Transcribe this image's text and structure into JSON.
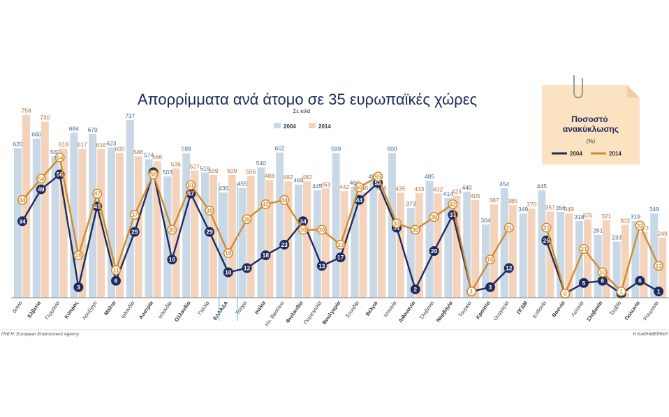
{
  "chart_data": {
    "type": "bar",
    "title": "Απορρίμματα ανά άτομο σε 35 ευρωπαϊκές χώρες",
    "subtitle": "Σε κιλά",
    "categories": [
      "Δανία",
      "Ελβετία",
      "Γερμανία",
      "Κύπρος",
      "Λουξ/ργο",
      "Μάλτα",
      "Ιρλανδία",
      "Αυστρία",
      "Ισλανδία",
      "Ολλανδία",
      "Γαλλία",
      "ΕΛΛΑΔΑ",
      "Τσεχία",
      "Ιταλία",
      "Ην. Βασίλειο",
      "Φινλανδία",
      "Πορτογαλία",
      "Βουλγαρία",
      "Σουηδία",
      "Βέλγιο",
      "Ισπανία",
      "Λιθουανία",
      "Σλοβενία",
      "Νορβηγία",
      "Τουρκία",
      "Κροατία",
      "Ουγγαρία",
      "ΠΓΔΜ",
      "Εσθονία",
      "Βοσνία",
      "Λετονία",
      "Σλοβακία",
      "Σερβία",
      "Πολωνία",
      "Ρουμανία"
    ],
    "bold_categories": [
      "Ελβετία",
      "Κύπρος",
      "Μάλτα",
      "Αυστρία",
      "Ολλανδία",
      "Ιταλία",
      "Φινλανδία",
      "Βουλγαρία",
      "Βέλγιο",
      "Λιθουανία",
      "Νορβηγία",
      "Κροατία",
      "ΠΓΔΜ",
      "Βοσνία",
      "Σλοβακία",
      "Πολωνία"
    ],
    "highlight_category": "ΕΛΛΑΔΑ",
    "series": [
      {
        "name": "2004",
        "color": "#c9d8e6",
        "values": [
          620,
          660,
          587,
          684,
          679,
          623,
          737,
          574,
          503,
          599,
          519,
          436,
          455,
          540,
          602,
          469,
          445,
          599,
          460,
          485,
          600,
          373,
          485,
          414,
          440,
          304,
          454,
          349,
          445,
          356,
          318,
          261,
          233,
          319,
          349
        ]
      },
      {
        "name": "2014",
        "color": "#f4d3bd",
        "values": [
          758,
          730,
          618,
          617,
          616,
          600,
          586,
          566,
          536,
          527,
          509,
          509,
          506,
          488,
          482,
          482,
          453,
          442,
          438,
          436,
          435,
          433,
          432,
          423,
          405,
          387,
          385,
          370,
          357,
          349,
          325,
          321,
          302,
          272,
          249
        ]
      }
    ],
    "recycling": {
      "title": "Ποσοστό ανακύκλωσης",
      "unit": "(%)",
      "series": [
        {
          "name": "2004",
          "color": "#1f2a5c",
          "values": [
            34,
            49,
            56,
            3,
            41,
            6,
            29,
            57,
            16,
            47,
            29,
            10,
            12,
            18,
            23,
            34,
            13,
            17,
            44,
            52,
            31,
            2,
            20,
            37,
            1,
            3,
            12,
            null,
            25,
            0,
            5,
            6,
            0,
            6,
            1
          ]
        },
        {
          "name": "2014",
          "color": "#d08b2a",
          "values": [
            44,
            54,
            64,
            18,
            47,
            11,
            37,
            56,
            30,
            51,
            39,
            19,
            35,
            42,
            44,
            30,
            30,
            23,
            50,
            55,
            33,
            30,
            36,
            42,
            1,
            16,
            31,
            null,
            31,
            0,
            21,
            10,
            1,
            32,
            13
          ]
        }
      ]
    },
    "ylim": [
      0,
      800
    ],
    "source": "ΠΗΓΗ: European Environment Agency",
    "publisher": "Η ΚΑΘΗΜΕΡΙΝΗ"
  }
}
